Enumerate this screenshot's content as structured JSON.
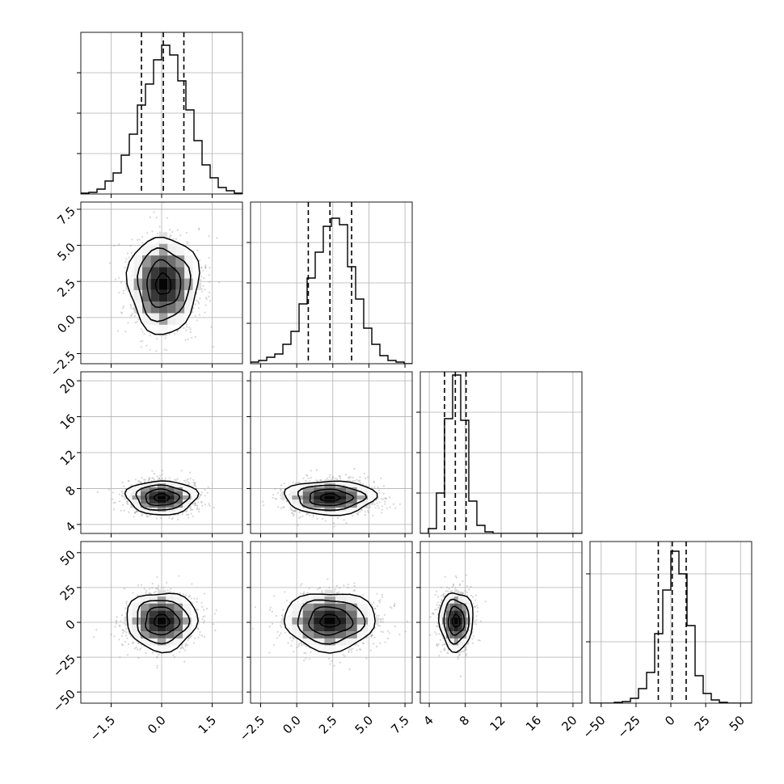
{
  "chart_data": {
    "type": "corner",
    "panels": [
      {
        "id": "hist-x0",
        "type": "histogram",
        "row": 0,
        "col": 0,
        "xlim": [
          -2.4,
          2.4
        ],
        "x_ticks": [
          -1.5,
          0.0,
          1.5
        ],
        "x_tick_labels": [],
        "y_tick_labels": [],
        "ylim": [
          0,
          1.0
        ],
        "y_ticks": [
          0.25,
          0.5,
          0.75
        ],
        "bin_edges": [
          -2.4,
          -2.16,
          -1.92,
          -1.68,
          -1.44,
          -1.2,
          -0.96,
          -0.72,
          -0.48,
          -0.24,
          0.0,
          0.24,
          0.48,
          0.72,
          0.96,
          1.2,
          1.44,
          1.68,
          1.92,
          2.16,
          2.4
        ],
        "counts": [
          0.005,
          0.01,
          0.03,
          0.08,
          0.13,
          0.24,
          0.37,
          0.55,
          0.68,
          0.83,
          0.92,
          0.86,
          0.7,
          0.52,
          0.33,
          0.18,
          0.1,
          0.04,
          0.02,
          0.005
        ],
        "quantiles": [
          -0.6,
          0.05,
          0.66
        ],
        "grid": true
      },
      {
        "id": "hist-x1",
        "type": "histogram",
        "row": 1,
        "col": 1,
        "xlim": [
          -3.2,
          8.0
        ],
        "x_ticks": [
          -2.5,
          0.0,
          2.5,
          5.0,
          7.5
        ],
        "x_tick_labels": [],
        "y_tick_labels": [],
        "ylim": [
          0,
          1.0
        ],
        "y_ticks": [
          0.25,
          0.5,
          0.75
        ],
        "bin_edges": [
          -3.2,
          -2.64,
          -2.08,
          -1.52,
          -0.96,
          -0.4,
          0.16,
          0.72,
          1.28,
          1.84,
          2.4,
          2.96,
          3.52,
          4.08,
          4.64,
          5.2,
          5.76,
          6.32,
          6.88,
          7.44,
          8.0
        ],
        "counts": [
          0.01,
          0.02,
          0.04,
          0.06,
          0.12,
          0.2,
          0.37,
          0.53,
          0.69,
          0.85,
          0.9,
          0.86,
          0.6,
          0.4,
          0.22,
          0.12,
          0.05,
          0.02,
          0.01,
          0.0
        ],
        "quantiles": [
          0.8,
          2.3,
          3.8
        ],
        "grid": true
      },
      {
        "id": "hist-x2",
        "type": "histogram",
        "row": 2,
        "col": 2,
        "xlim": [
          3.0,
          21.0
        ],
        "x_ticks": [
          4,
          8,
          12,
          16,
          20
        ],
        "x_tick_labels": [],
        "y_tick_labels": [],
        "ylim": [
          0,
          1.0
        ],
        "y_ticks": [
          0.25,
          0.5,
          0.75
        ],
        "bin_edges": [
          3.0,
          3.9,
          4.8,
          5.7,
          6.6,
          7.5,
          8.4,
          9.3,
          10.2,
          11.1,
          12.0,
          12.9,
          13.8,
          14.7,
          15.6,
          16.5,
          17.4,
          18.3,
          19.2,
          20.1,
          21.0
        ],
        "counts": [
          0.0,
          0.03,
          0.25,
          0.71,
          0.98,
          0.7,
          0.2,
          0.05,
          0.01,
          0.0,
          0.0,
          0.0,
          0.0,
          0.0,
          0.0,
          0.0,
          0.0,
          0.0,
          0.0,
          0.0
        ],
        "quantiles": [
          5.7,
          6.9,
          8.1
        ],
        "grid": true
      },
      {
        "id": "hist-x3",
        "type": "histogram",
        "row": 3,
        "col": 3,
        "xlim": [
          -58,
          58
        ],
        "x_ticks": [
          -50,
          -25,
          0,
          25,
          50
        ],
        "x_tick_labels": [
          "−50",
          "−25",
          "0",
          "25",
          "50"
        ],
        "y_tick_labels": [],
        "ylim": [
          0,
          1.0
        ],
        "y_ticks": [
          0.38,
          0.8
        ],
        "bin_edges": [
          -58,
          -52.2,
          -46.4,
          -40.6,
          -34.8,
          -29.0,
          -23.2,
          -17.4,
          -11.6,
          -5.8,
          0.0,
          5.8,
          11.6,
          17.4,
          23.2,
          29.0,
          34.8,
          40.6,
          46.4,
          52.2,
          58.0
        ],
        "counts": [
          0.0,
          0.0,
          0.0,
          0.005,
          0.01,
          0.03,
          0.09,
          0.19,
          0.43,
          0.7,
          0.94,
          0.8,
          0.48,
          0.17,
          0.06,
          0.02,
          0.005,
          0.0,
          0.0,
          0.0
        ],
        "quantiles": [
          -9,
          1,
          11
        ],
        "grid": true
      },
      {
        "id": "scatter-1-0",
        "type": "density2d",
        "row": 1,
        "col": 0,
        "xlim": [
          -2.4,
          2.4
        ],
        "ylim": [
          -3.2,
          8.0
        ],
        "x_ticks": [
          -1.5,
          0.0,
          1.5
        ],
        "y_ticks": [
          -2.5,
          0.0,
          2.5,
          5.0,
          7.5
        ],
        "x_tick_labels": [],
        "y_tick_labels": [
          "−2.5",
          "0.0",
          "2.5",
          "5.0",
          "7.5"
        ],
        "center": [
          0.05,
          2.3
        ],
        "sigma": [
          0.5,
          1.6
        ],
        "grid": true
      },
      {
        "id": "scatter-2-0",
        "type": "density2d",
        "row": 2,
        "col": 0,
        "xlim": [
          -2.4,
          2.4
        ],
        "ylim": [
          3.0,
          21.0
        ],
        "x_ticks": [
          -1.5,
          0.0,
          1.5
        ],
        "y_ticks": [
          4,
          8,
          12,
          16,
          20
        ],
        "x_tick_labels": [],
        "y_tick_labels": [
          "4",
          "8",
          "12",
          "16",
          "20"
        ],
        "center": [
          0.0,
          7.0
        ],
        "sigma": [
          0.5,
          0.9
        ],
        "grid": true
      },
      {
        "id": "scatter-2-1",
        "type": "density2d",
        "row": 2,
        "col": 1,
        "xlim": [
          -3.2,
          8.0
        ],
        "ylim": [
          3.0,
          21.0
        ],
        "x_ticks": [
          -2.5,
          0.0,
          2.5,
          5.0,
          7.5
        ],
        "y_ticks": [
          4,
          8,
          12,
          16,
          20
        ],
        "x_tick_labels": [],
        "y_tick_labels": [],
        "center": [
          2.3,
          7.0
        ],
        "sigma": [
          1.5,
          0.9
        ],
        "grid": true
      },
      {
        "id": "scatter-3-0",
        "type": "density2d",
        "row": 3,
        "col": 0,
        "xlim": [
          -2.4,
          2.4
        ],
        "ylim": [
          -58,
          58
        ],
        "x_ticks": [
          -1.5,
          0.0,
          1.5
        ],
        "y_ticks": [
          -50,
          -25,
          0,
          25,
          50
        ],
        "x_tick_labels": [
          "−1.5",
          "0.0",
          "1.5"
        ],
        "y_tick_labels": [
          "−50",
          "−25",
          "0",
          "25",
          "50"
        ],
        "center": [
          0.0,
          1.0
        ],
        "sigma": [
          0.5,
          10.0
        ],
        "grid": true
      },
      {
        "id": "scatter-3-1",
        "type": "density2d",
        "row": 3,
        "col": 1,
        "xlim": [
          -3.2,
          8.0
        ],
        "ylim": [
          -58,
          58
        ],
        "x_ticks": [
          -2.5,
          0.0,
          2.5,
          5.0,
          7.5
        ],
        "y_ticks": [
          -50,
          -25,
          0,
          25,
          50
        ],
        "x_tick_labels": [
          "−2.5",
          "0.0",
          "2.5",
          "5.0",
          "7.5"
        ],
        "y_tick_labels": [],
        "center": [
          2.3,
          1.0
        ],
        "sigma": [
          1.5,
          10.0
        ],
        "grid": true
      },
      {
        "id": "scatter-3-2",
        "type": "density2d",
        "row": 3,
        "col": 2,
        "xlim": [
          3.0,
          21.0
        ],
        "ylim": [
          -58,
          58
        ],
        "x_ticks": [
          4,
          8,
          12,
          16,
          20
        ],
        "y_ticks": [
          -50,
          -25,
          0,
          25,
          50
        ],
        "x_tick_labels": [
          "4",
          "8",
          "12",
          "16",
          "20"
        ],
        "y_tick_labels": [],
        "center": [
          7.0,
          1.0
        ],
        "sigma": [
          0.9,
          10.0
        ],
        "grid": true
      }
    ]
  },
  "colors": {
    "grid": "#b0b0b0",
    "line": "#000000",
    "scatter": "#8a8a8a",
    "background": "#ffffff"
  }
}
